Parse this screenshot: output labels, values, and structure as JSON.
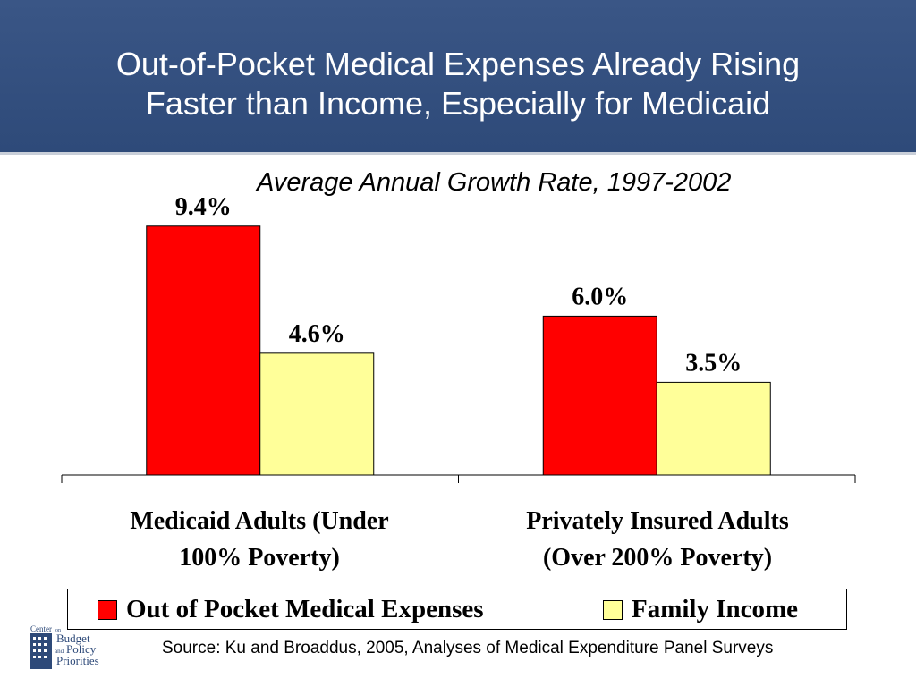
{
  "header": {
    "title_line1": "Out-of-Pocket Medical Expenses Already Rising",
    "title_line2": "Faster than Income, Especially for Medicaid"
  },
  "chart_data": {
    "type": "bar",
    "title": "Out-of-Pocket Medical Expenses Already Rising Faster than Income, Especially for Medicaid",
    "subtitle": "Average Annual Growth Rate, 1997-2002",
    "categories": [
      [
        "Medicaid Adults (Under",
        "100% Poverty)"
      ],
      [
        "Privately Insured Adults",
        "(Over 200% Poverty)"
      ]
    ],
    "series": [
      {
        "name": "Out of Pocket Medical Expenses",
        "values": [
          9.4,
          6.0
        ],
        "labels": [
          "9.4%",
          "6.0%"
        ],
        "color": "#ff0000"
      },
      {
        "name": "Family Income",
        "values": [
          4.6,
          3.5
        ],
        "labels": [
          "4.6%",
          "3.5%"
        ],
        "color": "#ffff99"
      }
    ],
    "ylim": [
      0,
      10
    ],
    "grid": false,
    "legend": "bottom"
  },
  "footer": {
    "source": "Source: Ku and Broaddus, 2005, Analyses of Medical Expenditure Panel Surveys",
    "logo": {
      "line_center": "Center",
      "line_on": "on",
      "line_budget": "Budget",
      "line_and": "and",
      "line_policy": "Policy",
      "line_priorities": "Priorities"
    }
  }
}
